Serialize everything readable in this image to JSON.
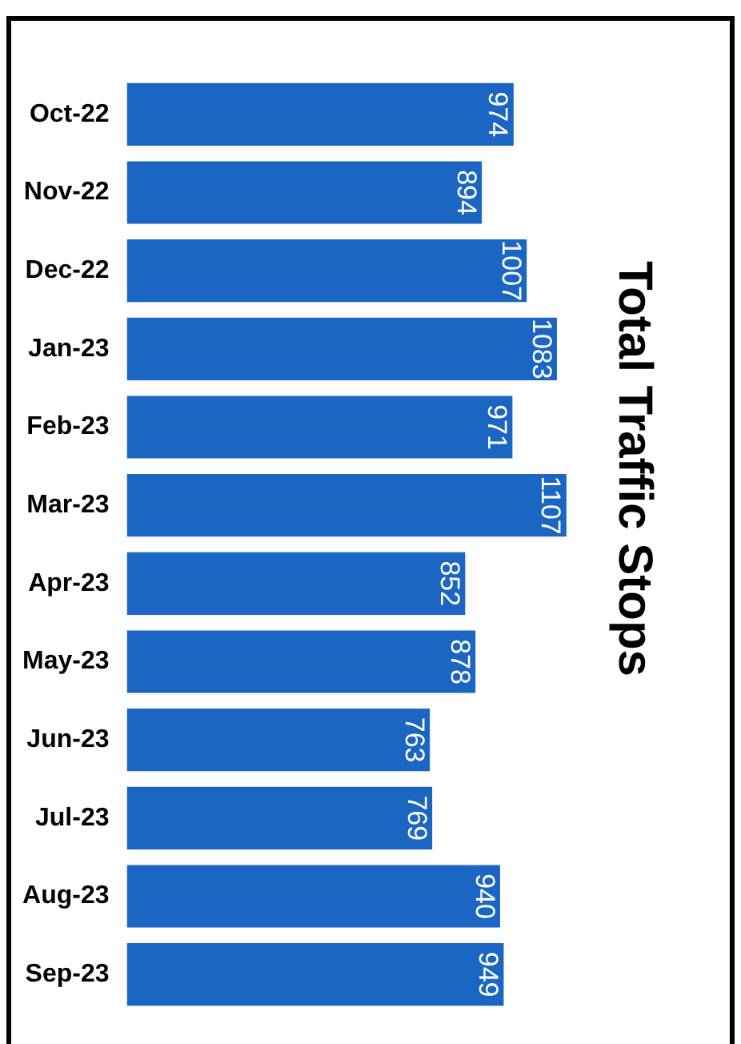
{
  "chart_data": {
    "type": "bar",
    "orientation": "horizontal",
    "title": "Total Traffic Stops",
    "categories": [
      "Oct-22",
      "Nov-22",
      "Dec-22",
      "Jan-23",
      "Feb-23",
      "Mar-23",
      "Apr-23",
      "May-23",
      "Jun-23",
      "Jul-23",
      "Aug-23",
      "Sep-23"
    ],
    "values": [
      974,
      894,
      1007,
      1083,
      971,
      1107,
      852,
      878,
      763,
      769,
      940,
      949
    ],
    "color": "#1a66c2",
    "data_labels": true,
    "grid": false,
    "legend": false,
    "tick_labels": "y"
  }
}
